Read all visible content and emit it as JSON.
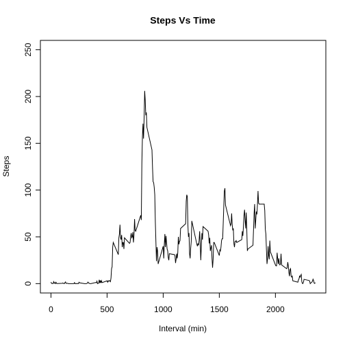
{
  "chart_data": {
    "type": "line",
    "title": "Steps Vs Time",
    "x_label": "Interval (min)",
    "y_label": "Steps",
    "color": "#000000",
    "x": [
      0,
      5,
      10,
      15,
      20,
      25,
      30,
      35,
      40,
      45,
      50,
      55,
      100,
      105,
      110,
      115,
      120,
      125,
      130,
      135,
      140,
      145,
      150,
      155,
      200,
      205,
      210,
      215,
      220,
      225,
      230,
      235,
      240,
      245,
      250,
      255,
      300,
      305,
      310,
      315,
      320,
      325,
      330,
      335,
      340,
      345,
      350,
      355,
      400,
      405,
      410,
      415,
      420,
      425,
      430,
      435,
      440,
      445,
      450,
      455,
      500,
      505,
      510,
      515,
      520,
      525,
      530,
      535,
      540,
      545,
      550,
      555,
      600,
      605,
      610,
      615,
      620,
      625,
      630,
      635,
      640,
      645,
      650,
      655,
      700,
      705,
      710,
      715,
      720,
      725,
      730,
      735,
      740,
      745,
      750,
      755,
      800,
      805,
      810,
      815,
      820,
      825,
      830,
      835,
      840,
      845,
      850,
      855,
      900,
      905,
      910,
      915,
      920,
      925,
      930,
      935,
      940,
      945,
      950,
      955,
      1000,
      1005,
      1010,
      1015,
      1020,
      1025,
      1030,
      1035,
      1040,
      1045,
      1050,
      1055,
      1100,
      1105,
      1110,
      1115,
      1120,
      1125,
      1130,
      1135,
      1140,
      1145,
      1150,
      1155,
      1200,
      1205,
      1210,
      1215,
      1220,
      1225,
      1230,
      1235,
      1240,
      1245,
      1250,
      1255,
      1300,
      1305,
      1310,
      1315,
      1320,
      1325,
      1330,
      1335,
      1340,
      1345,
      1350,
      1355,
      1400,
      1405,
      1410,
      1415,
      1420,
      1425,
      1430,
      1435,
      1440,
      1445,
      1450,
      1455,
      1500,
      1505,
      1510,
      1515,
      1520,
      1525,
      1530,
      1535,
      1540,
      1545,
      1550,
      1555,
      1600,
      1605,
      1610,
      1615,
      1620,
      1625,
      1630,
      1635,
      1640,
      1645,
      1650,
      1655,
      1700,
      1705,
      1710,
      1715,
      1720,
      1725,
      1730,
      1735,
      1740,
      1745,
      1750,
      1755,
      1800,
      1805,
      1810,
      1815,
      1820,
      1825,
      1830,
      1835,
      1840,
      1845,
      1850,
      1855,
      1900,
      1905,
      1910,
      1915,
      1920,
      1925,
      1930,
      1935,
      1940,
      1945,
      1950,
      1955,
      2000,
      2005,
      2010,
      2015,
      2020,
      2025,
      2030,
      2035,
      2040,
      2045,
      2050,
      2055,
      2100,
      2105,
      2110,
      2115,
      2120,
      2125,
      2130,
      2135,
      2140,
      2145,
      2150,
      2155,
      2200,
      2205,
      2210,
      2215,
      2220,
      2225,
      2230,
      2235,
      2240,
      2245,
      2250,
      2255,
      2300,
      2305,
      2310,
      2315,
      2320,
      2325,
      2330,
      2335,
      2340,
      2345,
      2350,
      2355
    ],
    "values": [
      1.7,
      0.3,
      0.1,
      0.2,
      0.1,
      2.1,
      0.5,
      0.9,
      0,
      1.5,
      0.3,
      0.1,
      0.3,
      0.7,
      0.2,
      0.3,
      0,
      1.1,
      1.8,
      0.2,
      0.2,
      0.4,
      0.3,
      0,
      0,
      0,
      1.1,
      0,
      0,
      0.1,
      0,
      0.2,
      0,
      0,
      1.5,
      0.9,
      0,
      0,
      0,
      0,
      0.2,
      0.6,
      1.6,
      0.6,
      0.5,
      0.1,
      0,
      0,
      1.2,
      0.9,
      2.6,
      0,
      0.3,
      0.4,
      4.1,
      0.7,
      3.5,
      0.8,
      3.1,
      1.1,
      3,
      1.5,
      3,
      2.5,
      3.3,
      2.9,
      2.1,
      6,
      16,
      18,
      39,
      44,
      31,
      49,
      53,
      63,
      49,
      47,
      52,
      39,
      44,
      44,
      37,
      49,
      43,
      44,
      50,
      54,
      49,
      50,
      55,
      44,
      52,
      69,
      57,
      56,
      73,
      68,
      129,
      157,
      171,
      155,
      177,
      206,
      196,
      180,
      183,
      167,
      143,
      124,
      109,
      108,
      103,
      95,
      66,
      45,
      24,
      39,
      35,
      21,
      40,
      27,
      42,
      53,
      39,
      51,
      44,
      37,
      35,
      28,
      25,
      32,
      31,
      30,
      22,
      26,
      32,
      27,
      33,
      50,
      42,
      45,
      46,
      59,
      64,
      88,
      95,
      93,
      63,
      50,
      54,
      32,
      27,
      38,
      45,
      67,
      42,
      40,
      43,
      41,
      46,
      56,
      43,
      25,
      40,
      54,
      47,
      61,
      56,
      52,
      43,
      49,
      35,
      38,
      41,
      27,
      17,
      26,
      44,
      44,
      30,
      36,
      35,
      39,
      46,
      48,
      48,
      65,
      83,
      99,
      102,
      84,
      62,
      64,
      75,
      63,
      57,
      59,
      43,
      39,
      45,
      45,
      46,
      44,
      47,
      56,
      51,
      61,
      73,
      79,
      68,
      59,
      76,
      57,
      35,
      37,
      41,
      58,
      75,
      85,
      59,
      68,
      77,
      74,
      85,
      99,
      86,
      85,
      85,
      78,
      58,
      53,
      36,
      21,
      27,
      40,
      30,
      26,
      46,
      34,
      20,
      19,
      19,
      33,
      27,
      21,
      27,
      21,
      20,
      21,
      32,
      20,
      16,
      17,
      23,
      19,
      12,
      8,
      15,
      16,
      8,
      7,
      8,
      3,
      1.5,
      4,
      5,
      8,
      6.9,
      8.6,
      9.8,
      2.2,
      0.3,
      0.1,
      1.6,
      4.6,
      3.3,
      2.8,
      0,
      0.8,
      1,
      1.6,
      2.6,
      4.7,
      3.3,
      0.6,
      0.2,
      1.1
    ],
    "xlim": [
      -94.2,
      2449.2
    ],
    "xticks": [
      0,
      500,
      1000,
      1500,
      2000
    ],
    "ylim": [
      -10,
      260
    ],
    "yticks": [
      0,
      50,
      100,
      150,
      200,
      250
    ]
  }
}
